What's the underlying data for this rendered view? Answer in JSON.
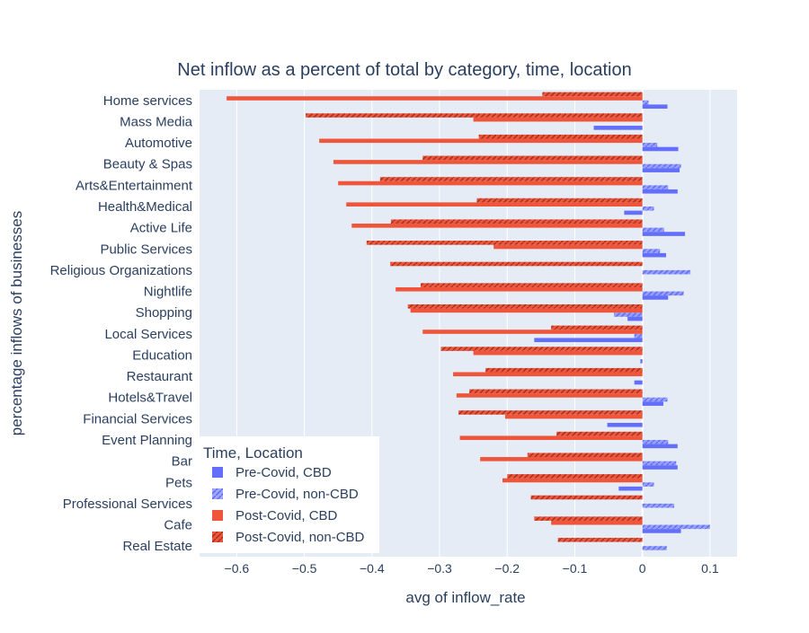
{
  "chart_data": {
    "type": "bar",
    "orientation": "horizontal",
    "barmode": "group",
    "title": "Net inflow as a percent of total by category, time, location",
    "xlabel": "avg of inflow_rate",
    "ylabel": "percentage inflows of businesses",
    "xlim": [
      -0.655,
      0.14
    ],
    "x_ticks": [
      -0.6,
      -0.5,
      -0.4,
      -0.3,
      -0.2,
      -0.1,
      0,
      0.1
    ],
    "x_tick_labels": [
      "−0.6",
      "−0.5",
      "−0.4",
      "−0.3",
      "−0.2",
      "−0.1",
      "0",
      "0.1"
    ],
    "grid": true,
    "legend_position": "bottom-left",
    "legend_title": "Time, Location",
    "categories": [
      "Home services",
      "Mass Media",
      "Automotive",
      "Beauty & Spas",
      "Arts&Entertainment",
      "Health&Medical",
      "Active Life",
      "Public Services",
      "Religious Organizations",
      "Nightlife",
      "Shopping",
      "Local Services",
      "Education",
      "Restaurant",
      "Hotels&Travel",
      "Financial Services",
      "Event Planning",
      "Bar",
      "Pets",
      "Professional Services",
      "Cafe",
      "Real Estate"
    ],
    "series": [
      {
        "name": "Pre-Covid, CBD",
        "color": "#636efa",
        "pattern": "solid",
        "values": [
          0.037,
          -0.072,
          0.053,
          0.055,
          0.052,
          -0.027,
          0.063,
          0.035,
          null,
          0.038,
          -0.022,
          -0.16,
          -0.003,
          -0.012,
          0.031,
          -0.052,
          0.052,
          0.052,
          -0.035,
          null,
          0.057,
          null
        ]
      },
      {
        "name": "Pre-Covid, non-CBD",
        "color": "#636efa",
        "pattern": "hatch",
        "values": [
          0.009,
          null,
          0.022,
          0.057,
          0.038,
          0.017,
          0.032,
          0.026,
          0.071,
          0.061,
          -0.042,
          -0.012,
          null,
          null,
          0.037,
          null,
          0.038,
          0.05,
          0.017,
          0.047,
          0.1,
          0.036
        ]
      },
      {
        "name": "Post-Covid, CBD",
        "color": "#ef553b",
        "pattern": "solid",
        "values": [
          -0.615,
          -0.25,
          -0.478,
          -0.457,
          -0.45,
          -0.438,
          -0.43,
          -0.22,
          null,
          -0.365,
          -0.343,
          -0.325,
          -0.25,
          -0.28,
          -0.275,
          -0.203,
          -0.27,
          -0.24,
          -0.207,
          null,
          -0.135,
          null
        ]
      },
      {
        "name": "Post-Covid, non-CBD",
        "color": "#ef553b",
        "pattern": "hatch",
        "values": [
          -0.148,
          -0.498,
          -0.242,
          -0.325,
          -0.388,
          -0.245,
          -0.372,
          -0.408,
          -0.373,
          -0.328,
          -0.347,
          -0.135,
          -0.298,
          -0.232,
          -0.256,
          -0.272,
          -0.127,
          -0.17,
          -0.2,
          -0.165,
          -0.16,
          -0.125
        ]
      }
    ]
  }
}
